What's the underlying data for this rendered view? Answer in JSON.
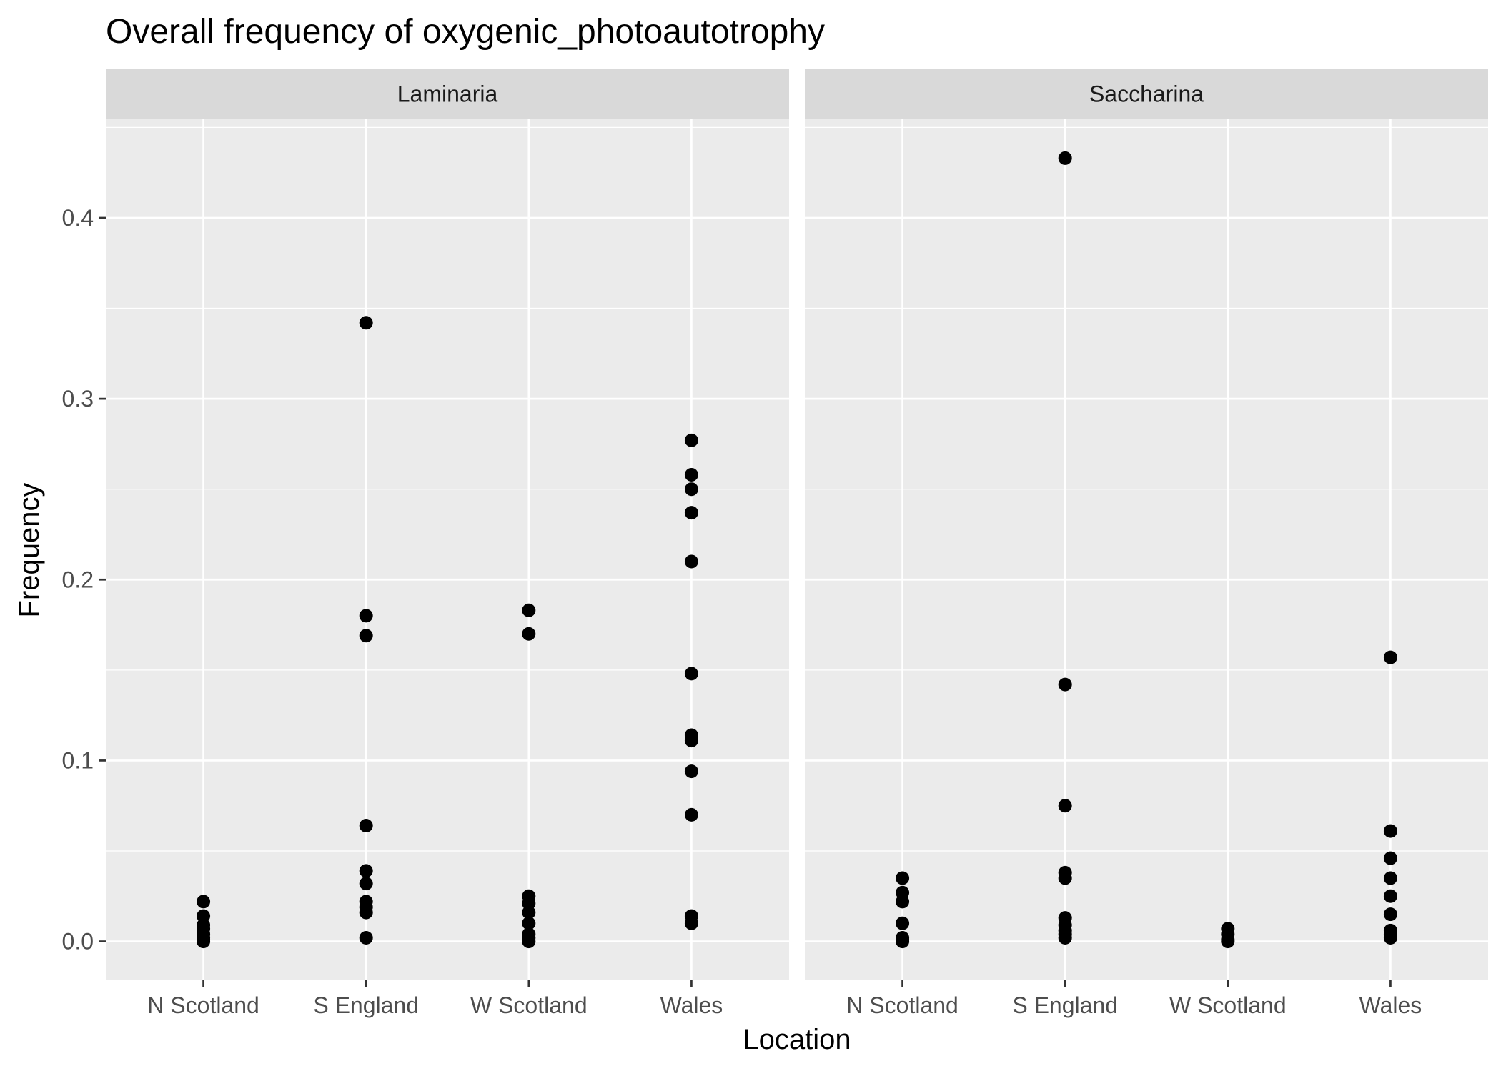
{
  "chart_data": {
    "type": "scatter",
    "title": "Overall frequency of oxygenic_photoautotrophy",
    "xlabel": "Location",
    "ylabel": "Frequency",
    "categories": [
      "N Scotland",
      "S England",
      "W Scotland",
      "Wales"
    ],
    "ylim": [
      -0.0215,
      0.4545
    ],
    "yticks": [
      0.0,
      0.1,
      0.2,
      0.3,
      0.4
    ],
    "ytick_labels": [
      "0.0",
      "0.1",
      "0.2",
      "0.3",
      "0.4"
    ],
    "grid": true,
    "legend": "none",
    "colors": {
      "panel_bg": "#ebebeb",
      "strip_bg": "#d9d9d9",
      "grid": "#ffffff",
      "point": "#000000",
      "tick_text": "#4d4d4d"
    },
    "panels": [
      {
        "name": "Laminaria",
        "points": [
          {
            "x": "N Scotland",
            "y": 0.0
          },
          {
            "x": "N Scotland",
            "y": 0.001
          },
          {
            "x": "N Scotland",
            "y": 0.002
          },
          {
            "x": "N Scotland",
            "y": 0.004
          },
          {
            "x": "N Scotland",
            "y": 0.007
          },
          {
            "x": "N Scotland",
            "y": 0.009
          },
          {
            "x": "N Scotland",
            "y": 0.014
          },
          {
            "x": "N Scotland",
            "y": 0.022
          },
          {
            "x": "S England",
            "y": 0.002
          },
          {
            "x": "S England",
            "y": 0.016
          },
          {
            "x": "S England",
            "y": 0.019
          },
          {
            "x": "S England",
            "y": 0.022
          },
          {
            "x": "S England",
            "y": 0.032
          },
          {
            "x": "S England",
            "y": 0.039
          },
          {
            "x": "S England",
            "y": 0.064
          },
          {
            "x": "S England",
            "y": 0.169
          },
          {
            "x": "S England",
            "y": 0.18
          },
          {
            "x": "S England",
            "y": 0.342
          },
          {
            "x": "W Scotland",
            "y": 0.0
          },
          {
            "x": "W Scotland",
            "y": 0.002
          },
          {
            "x": "W Scotland",
            "y": 0.004
          },
          {
            "x": "W Scotland",
            "y": 0.01
          },
          {
            "x": "W Scotland",
            "y": 0.016
          },
          {
            "x": "W Scotland",
            "y": 0.021
          },
          {
            "x": "W Scotland",
            "y": 0.025
          },
          {
            "x": "W Scotland",
            "y": 0.17
          },
          {
            "x": "W Scotland",
            "y": 0.183
          },
          {
            "x": "Wales",
            "y": 0.01
          },
          {
            "x": "Wales",
            "y": 0.014
          },
          {
            "x": "Wales",
            "y": 0.07
          },
          {
            "x": "Wales",
            "y": 0.094
          },
          {
            "x": "Wales",
            "y": 0.111
          },
          {
            "x": "Wales",
            "y": 0.114
          },
          {
            "x": "Wales",
            "y": 0.148
          },
          {
            "x": "Wales",
            "y": 0.21
          },
          {
            "x": "Wales",
            "y": 0.237
          },
          {
            "x": "Wales",
            "y": 0.25
          },
          {
            "x": "Wales",
            "y": 0.258
          },
          {
            "x": "Wales",
            "y": 0.277
          }
        ]
      },
      {
        "name": "Saccharina",
        "points": [
          {
            "x": "N Scotland",
            "y": 0.0
          },
          {
            "x": "N Scotland",
            "y": 0.001
          },
          {
            "x": "N Scotland",
            "y": 0.002
          },
          {
            "x": "N Scotland",
            "y": 0.01
          },
          {
            "x": "N Scotland",
            "y": 0.022
          },
          {
            "x": "N Scotland",
            "y": 0.027
          },
          {
            "x": "N Scotland",
            "y": 0.035
          },
          {
            "x": "S England",
            "y": 0.002
          },
          {
            "x": "S England",
            "y": 0.004
          },
          {
            "x": "S England",
            "y": 0.006
          },
          {
            "x": "S England",
            "y": 0.009
          },
          {
            "x": "S England",
            "y": 0.013
          },
          {
            "x": "S England",
            "y": 0.035
          },
          {
            "x": "S England",
            "y": 0.038
          },
          {
            "x": "S England",
            "y": 0.075
          },
          {
            "x": "S England",
            "y": 0.142
          },
          {
            "x": "S England",
            "y": 0.433
          },
          {
            "x": "W Scotland",
            "y": 0.0
          },
          {
            "x": "W Scotland",
            "y": 0.001
          },
          {
            "x": "W Scotland",
            "y": 0.004
          },
          {
            "x": "W Scotland",
            "y": 0.007
          },
          {
            "x": "Wales",
            "y": 0.002
          },
          {
            "x": "Wales",
            "y": 0.004
          },
          {
            "x": "Wales",
            "y": 0.006
          },
          {
            "x": "Wales",
            "y": 0.015
          },
          {
            "x": "Wales",
            "y": 0.025
          },
          {
            "x": "Wales",
            "y": 0.035
          },
          {
            "x": "Wales",
            "y": 0.046
          },
          {
            "x": "Wales",
            "y": 0.061
          },
          {
            "x": "Wales",
            "y": 0.157
          }
        ]
      }
    ]
  }
}
